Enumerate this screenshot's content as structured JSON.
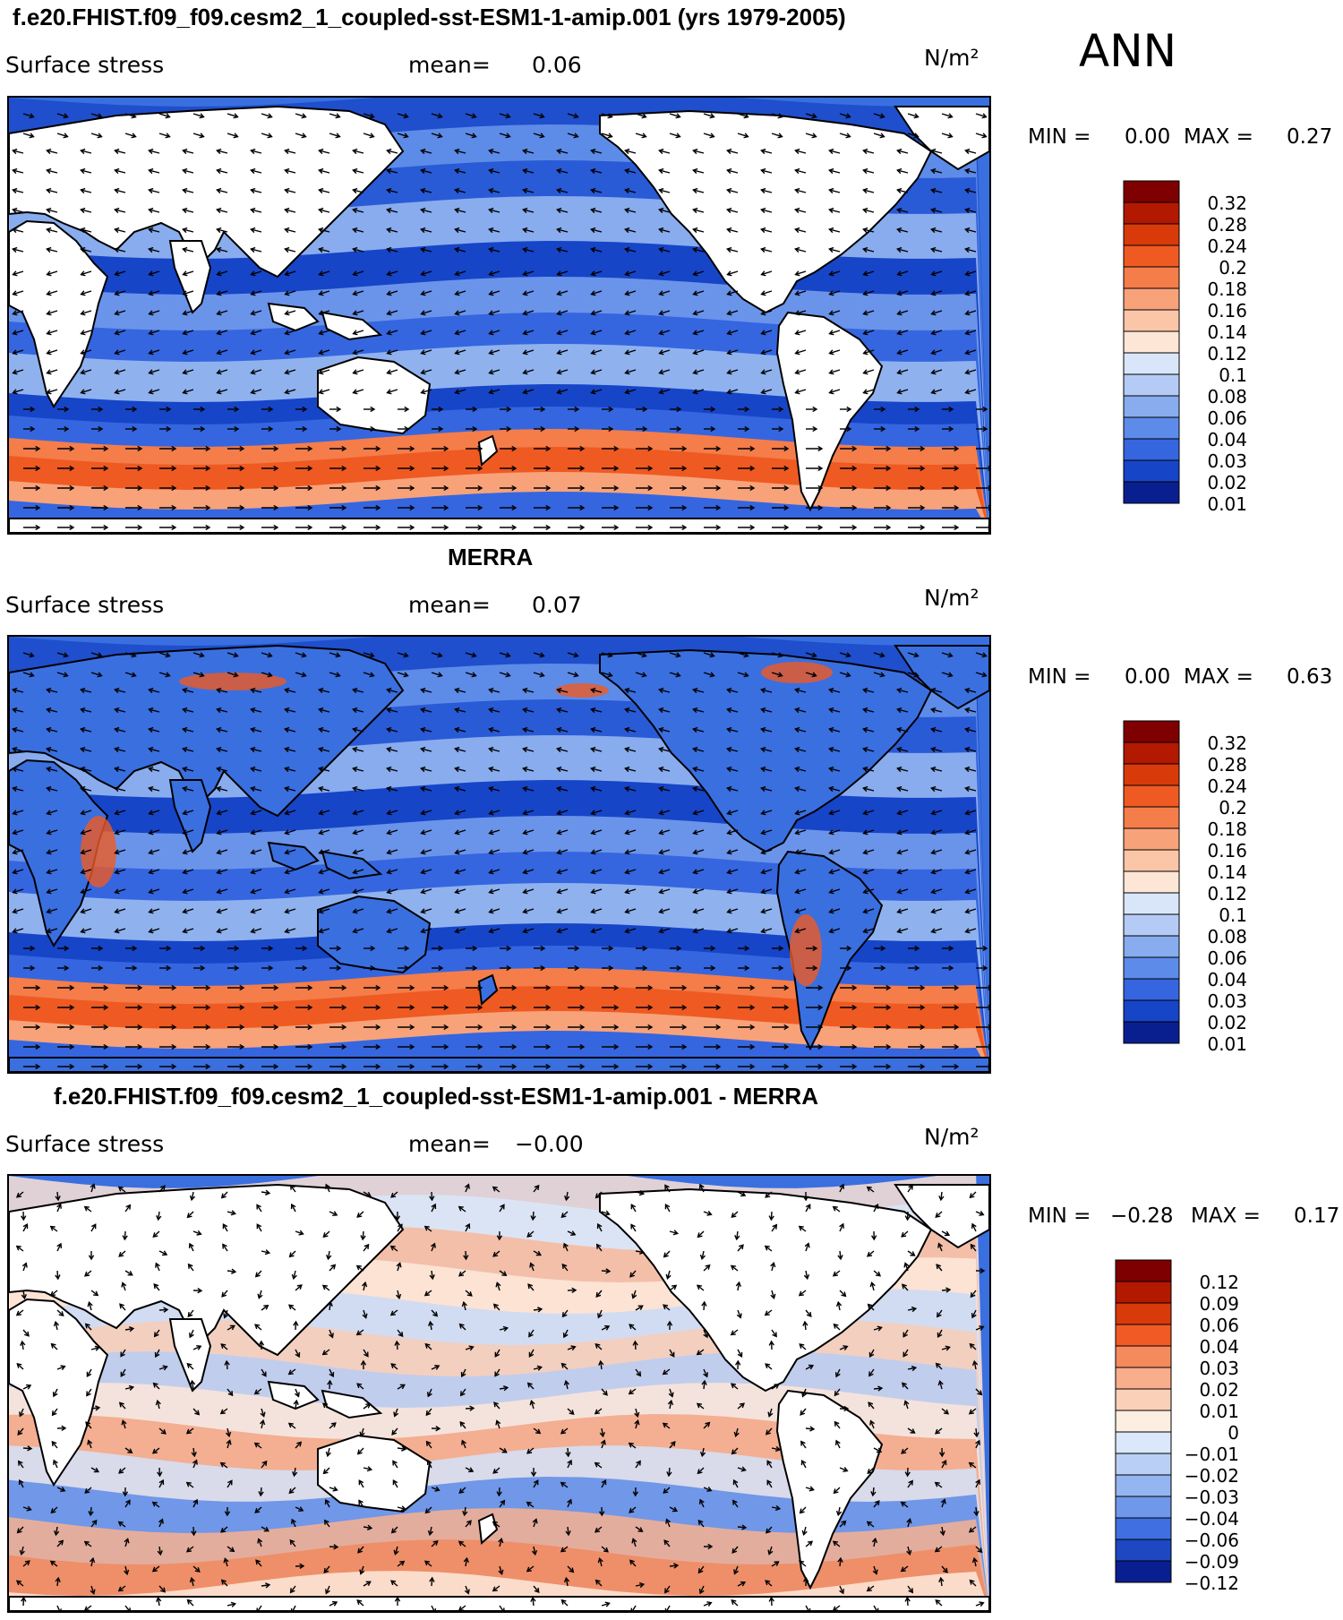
{
  "season": "ANN",
  "panels": [
    {
      "title": "f.e20.FHIST.f09_f09.cesm2_1_coupled-sst-ESM1-1-amip.001 (yrs 1979-2005)",
      "variable": "Surface stress",
      "mean_label": "mean=",
      "mean_value": "0.06",
      "units": "N/m²",
      "min_label": "MIN =",
      "min_value": "0.00",
      "max_label": "MAX =",
      "max_value": "0.27",
      "colorbar": [
        "0.32",
        "0.28",
        "0.24",
        "0.2",
        "0.18",
        "0.16",
        "0.14",
        "0.12",
        "0.1",
        "0.08",
        "0.06",
        "0.04",
        "0.03",
        "0.02",
        "0.01"
      ],
      "style": "abs"
    },
    {
      "title": "MERRA",
      "variable": "Surface stress",
      "mean_label": "mean=",
      "mean_value": "0.07",
      "units": "N/m²",
      "min_label": "MIN =",
      "min_value": "0.00",
      "max_label": "MAX =",
      "max_value": "0.63",
      "colorbar": [
        "0.32",
        "0.28",
        "0.24",
        "0.2",
        "0.18",
        "0.16",
        "0.14",
        "0.12",
        "0.1",
        "0.08",
        "0.06",
        "0.04",
        "0.03",
        "0.02",
        "0.01"
      ],
      "style": "abs2"
    },
    {
      "title": "f.e20.FHIST.f09_f09.cesm2_1_coupled-sst-ESM1-1-amip.001 - MERRA",
      "variable": "Surface stress",
      "mean_label": "mean=",
      "mean_value": "−0.00",
      "units": "N/m²",
      "min_label": "MIN =",
      "min_value": "−0.28",
      "max_label": "MAX =",
      "max_value": "0.17",
      "colorbar": [
        "0.12",
        "0.09",
        "0.06",
        "0.04",
        "0.03",
        "0.02",
        "0.01",
        "0",
        "−0.01",
        "−0.02",
        "−0.03",
        "−0.04",
        "−0.06",
        "−0.09",
        "−0.12"
      ],
      "style": "diff"
    }
  ],
  "colors": {
    "abs_scale": [
      "#7f0000",
      "#b31800",
      "#d83a0a",
      "#ef5a22",
      "#f47d4a",
      "#f8a27a",
      "#fbc6a8",
      "#fde6d6",
      "#d9e6fa",
      "#b4cbf5",
      "#88acee",
      "#5d8bea",
      "#3566e0",
      "#1745c8",
      "#0a1f8f"
    ],
    "diff_scale": [
      "#7f0000",
      "#b31800",
      "#d83a0a",
      "#f15a24",
      "#f58a5c",
      "#f8ad8d",
      "#fbd0b8",
      "#fdeee2",
      "#dbe7fa",
      "#b9cff5",
      "#94b5ef",
      "#6f97ea",
      "#3f6fe0",
      "#1d48c2",
      "#0a1f8f"
    ]
  }
}
